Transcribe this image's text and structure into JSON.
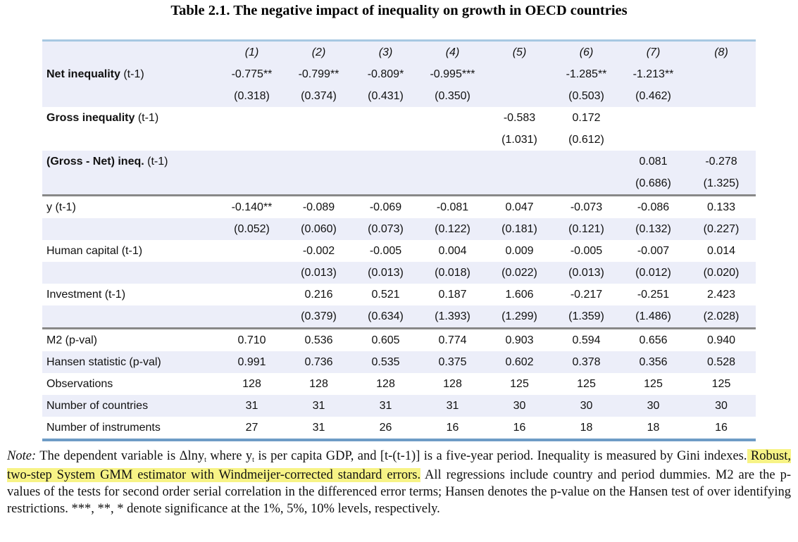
{
  "title": "Table 2.1. The negative impact of inequality on growth in OECD countries",
  "columns": [
    "(1)",
    "(2)",
    "(3)",
    "(4)",
    "(5)",
    "(6)",
    "(7)",
    "(8)"
  ],
  "rows": [
    {
      "label": "Net inequality",
      "suffix": " (t-1)",
      "bold": true,
      "shade": true,
      "values": [
        "-0.775**",
        "-0.799**",
        "-0.809*",
        "-0.995***",
        "",
        "-1.285**",
        "-1.213**",
        ""
      ]
    },
    {
      "label": "",
      "suffix": "",
      "bold": false,
      "shade": true,
      "values": [
        "(0.318)",
        "(0.374)",
        "(0.431)",
        "(0.350)",
        "",
        "(0.503)",
        "(0.462)",
        ""
      ]
    },
    {
      "label": "Gross inequality",
      "suffix": " (t-1)",
      "bold": true,
      "shade": false,
      "values": [
        "",
        "",
        "",
        "",
        "-0.583",
        "0.172",
        "",
        ""
      ]
    },
    {
      "label": "",
      "suffix": "",
      "bold": false,
      "shade": false,
      "values": [
        "",
        "",
        "",
        "",
        "(1.031)",
        "(0.612)",
        "",
        ""
      ]
    },
    {
      "label": "(Gross - Net) ineq.",
      "suffix": " (t-1)",
      "bold": true,
      "shade": true,
      "values": [
        "",
        "",
        "",
        "",
        "",
        "",
        "0.081",
        "-0.278"
      ]
    },
    {
      "label": "",
      "suffix": "",
      "bold": false,
      "shade": true,
      "sep": true,
      "values": [
        "",
        "",
        "",
        "",
        "",
        "",
        "(0.686)",
        "(1.325)"
      ]
    },
    {
      "label": "y  (t-1)",
      "suffix": "",
      "bold": false,
      "shade": false,
      "values": [
        "-0.140**",
        "-0.089",
        "-0.069",
        "-0.081",
        "0.047",
        "-0.073",
        "-0.086",
        "0.133"
      ]
    },
    {
      "label": "",
      "suffix": "",
      "bold": false,
      "shade": true,
      "values": [
        "(0.052)",
        "(0.060)",
        "(0.073)",
        "(0.122)",
        "(0.181)",
        "(0.121)",
        "(0.132)",
        "(0.227)"
      ]
    },
    {
      "label": "Human capital (t-1)",
      "suffix": "",
      "bold": false,
      "shade": false,
      "values": [
        "",
        "-0.002",
        "-0.005",
        "0.004",
        "0.009",
        "-0.005",
        "-0.007",
        "0.014"
      ]
    },
    {
      "label": "",
      "suffix": "",
      "bold": false,
      "shade": true,
      "values": [
        "",
        "(0.013)",
        "(0.013)",
        "(0.018)",
        "(0.022)",
        "(0.013)",
        "(0.012)",
        "(0.020)"
      ]
    },
    {
      "label": "Investment (t-1)",
      "suffix": "",
      "bold": false,
      "shade": false,
      "values": [
        "",
        "0.216",
        "0.521",
        "0.187",
        "1.606",
        "-0.217",
        "-0.251",
        "2.423"
      ]
    },
    {
      "label": "",
      "suffix": "",
      "bold": false,
      "shade": true,
      "sep": true,
      "values": [
        "",
        "(0.379)",
        "(0.634)",
        "(1.393)",
        "(1.299)",
        "(1.359)",
        "(1.486)",
        "(2.028)"
      ]
    },
    {
      "label": "M2 (p-val)",
      "suffix": "",
      "bold": false,
      "shade": false,
      "values": [
        "0.710",
        "0.536",
        "0.605",
        "0.774",
        "0.903",
        "0.594",
        "0.656",
        "0.940"
      ]
    },
    {
      "label": "Hansen statistic (p-val)",
      "suffix": "",
      "bold": false,
      "shade": true,
      "values": [
        "0.991",
        "0.736",
        "0.535",
        "0.375",
        "0.602",
        "0.378",
        "0.356",
        "0.528"
      ]
    },
    {
      "label": "Observations",
      "suffix": "",
      "bold": false,
      "shade": false,
      "values": [
        "128",
        "128",
        "128",
        "128",
        "125",
        "125",
        "125",
        "125"
      ]
    },
    {
      "label": "Number of countries",
      "suffix": "",
      "bold": false,
      "shade": true,
      "values": [
        "31",
        "31",
        "31",
        "31",
        "30",
        "30",
        "30",
        "30"
      ]
    },
    {
      "label": "Number of instruments",
      "suffix": "",
      "bold": false,
      "shade": false,
      "values": [
        "27",
        "31",
        "26",
        "16",
        "16",
        "18",
        "18",
        "16"
      ]
    }
  ],
  "note": {
    "label": "Note:",
    "p1": " The dependent variable is Δlny",
    "sub1": "t",
    "p2": " where y",
    "sub2": "t",
    "p3": " is per capita GDP, and [t-(t-1)] is a five-year period. Inequality is measured by Gini indexes.",
    "highlight": " Robust, two-step System GMM estimator with Windmeijer-corrected standard errors.",
    "p4": " All regressions include country and period dummies. M2 are the p-values of the tests for second order serial correlation in the differenced error terms; Hansen denotes the p-value on the Hansen test of over identifying restrictions. ***, **, * denote significance at the 1%, 5%, 10% levels, respectively."
  },
  "colors": {
    "shade": "#eceef9",
    "rule_top": "#a7c8e2",
    "rule_bottom": "#6e9cc6",
    "highlight": "#f7f386"
  }
}
